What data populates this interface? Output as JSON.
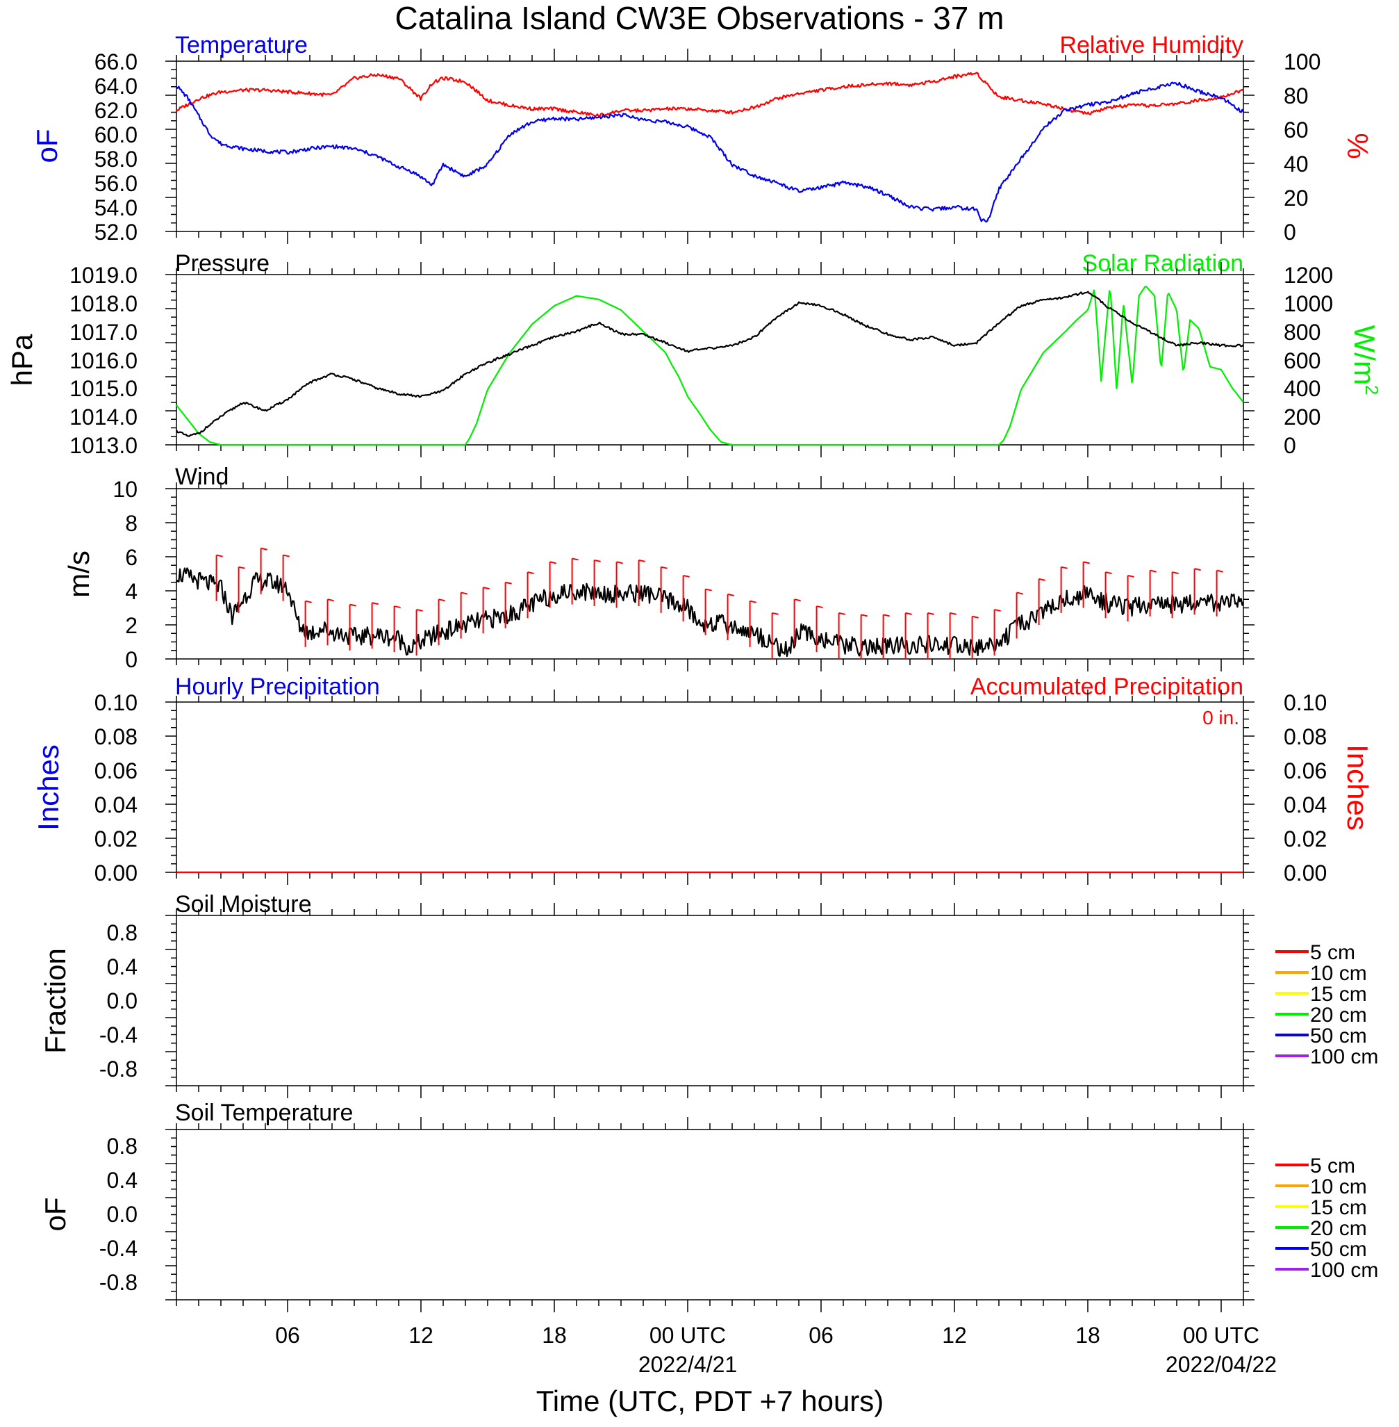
{
  "title": "Catalina Island CW3E Observations - 37 m",
  "x_axis": {
    "title": "Time (UTC, PDT +7 hours)",
    "range_hours": [
      0,
      48
    ],
    "tick_labels": [
      {
        "hour": 5,
        "label": "06"
      },
      {
        "hour": 11,
        "label": "12"
      },
      {
        "hour": 17,
        "label": "18"
      },
      {
        "hour": 23,
        "label": "00 UTC"
      },
      {
        "hour": 29,
        "label": "06"
      },
      {
        "hour": 35,
        "label": "12"
      },
      {
        "hour": 41,
        "label": "18"
      },
      {
        "hour": 47,
        "label": "00 UTC"
      }
    ],
    "date_labels": [
      {
        "hour": 23,
        "label": "2022/4/21"
      },
      {
        "hour": 47,
        "label": "2022/04/22"
      }
    ]
  },
  "colors": {
    "temperature": "#0000ee",
    "humidity": "#ff0000",
    "pressure": "#000000",
    "solar": "#00ee00",
    "wind": "#000000",
    "barbs": "#ff0000",
    "hourly_precip": "#0000ee",
    "accum_precip": "#ff0000"
  },
  "panels": {
    "temperature": {
      "left_title": "Temperature",
      "right_title": "Relative Humidity",
      "left_unit": "oF",
      "right_unit": "%",
      "left_ticks": [
        "52.0",
        "54.0",
        "56.0",
        "58.0",
        "60.0",
        "62.0",
        "64.0",
        "66.0"
      ],
      "right_ticks": [
        "0",
        "20",
        "40",
        "60",
        "80",
        "100"
      ]
    },
    "pressure": {
      "left_title": "Pressure",
      "right_title": "Solar Radiation",
      "left_unit": "hPa",
      "right_unit": "W/m",
      "right_unit_sup": "2",
      "left_ticks": [
        "1013.0",
        "1014.0",
        "1015.0",
        "1016.0",
        "1017.0",
        "1018.0",
        "1019.0"
      ],
      "right_ticks": [
        "0",
        "200",
        "400",
        "600",
        "800",
        "1000",
        "1200"
      ]
    },
    "wind": {
      "left_title": "Wind",
      "left_unit": "m/s",
      "left_ticks": [
        "0",
        "2",
        "4",
        "6",
        "8",
        "10"
      ]
    },
    "precip": {
      "left_title": "Hourly Precipitation",
      "right_title": "Accumulated Precipitation",
      "accum_value": "0 in.",
      "left_unit": "Inches",
      "right_unit": "Inches",
      "left_ticks": [
        "0.00",
        "0.02",
        "0.04",
        "0.06",
        "0.08",
        "0.10"
      ],
      "right_ticks": [
        "0.00",
        "0.02",
        "0.04",
        "0.06",
        "0.08",
        "0.10"
      ]
    },
    "soil_moisture": {
      "left_title": "Soil Moisture",
      "left_unit": "Fraction",
      "left_ticks": [
        "-0.8",
        "-0.4",
        "0.0",
        "0.4",
        "0.8"
      ],
      "legend": [
        {
          "label": "5 cm",
          "color": "#ff0000"
        },
        {
          "label": "10 cm",
          "color": "#ffa500"
        },
        {
          "label": "15 cm",
          "color": "#ffff00"
        },
        {
          "label": "20 cm",
          "color": "#00ee00"
        },
        {
          "label": "50 cm",
          "color": "#0000ee"
        },
        {
          "label": "100 cm",
          "color": "#a020f0"
        }
      ]
    },
    "soil_temperature": {
      "left_title": "Soil Temperature",
      "left_unit": "oF",
      "left_ticks": [
        "-0.8",
        "-0.4",
        "0.0",
        "0.4",
        "0.8"
      ],
      "legend": [
        {
          "label": "5 cm",
          "color": "#ff0000"
        },
        {
          "label": "10 cm",
          "color": "#ffa500"
        },
        {
          "label": "15 cm",
          "color": "#ffff00"
        },
        {
          "label": "20 cm",
          "color": "#00ee00"
        },
        {
          "label": "50 cm",
          "color": "#0000ee"
        },
        {
          "label": "100 cm",
          "color": "#a020f0"
        }
      ]
    }
  },
  "chart_data": [
    {
      "type": "line",
      "title": "Temperature / Relative Humidity",
      "x_unit": "hours since 2022-04-20 01 UTC",
      "series": [
        {
          "name": "Temperature",
          "axis": "left",
          "unit": "oF",
          "x": [
            0,
            0.5,
            1,
            1.5,
            2,
            3,
            4,
            5,
            6,
            7,
            8,
            9,
            10,
            10.5,
            11,
            11.5,
            12,
            12.5,
            13,
            14,
            15,
            16,
            17,
            18,
            19,
            20,
            21,
            22,
            23,
            24,
            25,
            26,
            27,
            28,
            29,
            30,
            31,
            32,
            33,
            34,
            35,
            36,
            36.2,
            36.5,
            37,
            38,
            39,
            40,
            41,
            42,
            43,
            44,
            45,
            46,
            47,
            48
          ],
          "y": [
            64.0,
            63.0,
            61.5,
            60.0,
            59.2,
            58.8,
            58.6,
            58.5,
            58.8,
            59.0,
            58.8,
            58.2,
            57.3,
            57.0,
            56.5,
            55.8,
            57.5,
            57.0,
            56.5,
            57.5,
            60.0,
            61.0,
            61.3,
            61.2,
            61.4,
            61.6,
            61.2,
            61.0,
            60.6,
            59.8,
            57.5,
            56.6,
            56.0,
            55.3,
            55.6,
            56.0,
            55.7,
            55.0,
            54.0,
            53.8,
            54.0,
            53.8,
            53.0,
            52.8,
            55.5,
            58.0,
            60.5,
            62.0,
            62.4,
            62.7,
            63.3,
            63.8,
            64.2,
            63.5,
            63.0,
            61.8
          ]
        },
        {
          "name": "Relative Humidity",
          "axis": "right",
          "unit": "%",
          "x": [
            0,
            1,
            2,
            3,
            4,
            5,
            6,
            7,
            8,
            9,
            10,
            11,
            11.5,
            12,
            13,
            14,
            15,
            16,
            17,
            18,
            19,
            20,
            21,
            22,
            23,
            24,
            25,
            26,
            27,
            28,
            29,
            30,
            31,
            32,
            33,
            34,
            35,
            36,
            36.5,
            37,
            38,
            39,
            40,
            41,
            42,
            43,
            44,
            45,
            46,
            47,
            48
          ],
          "y": [
            71,
            78,
            82,
            83,
            83,
            82,
            81,
            80,
            90,
            92,
            90,
            78,
            87,
            90,
            88,
            77,
            74,
            72,
            72,
            70,
            68,
            71,
            71,
            72,
            72,
            71,
            70,
            73,
            78,
            81,
            83,
            85,
            86,
            87,
            86,
            88,
            91,
            93,
            86,
            79,
            77,
            75,
            72,
            69,
            73,
            74,
            74,
            75,
            77,
            79,
            83
          ]
        }
      ],
      "ylim_left": [
        52,
        66
      ],
      "ylim_right": [
        0,
        100
      ]
    },
    {
      "type": "line",
      "title": "Pressure / Solar Radiation",
      "x_unit": "hours since 2022-04-20 01 UTC",
      "series": [
        {
          "name": "Pressure",
          "axis": "left",
          "unit": "hPa",
          "x": [
            0,
            0.5,
            1,
            2,
            3,
            4,
            5,
            6,
            7,
            8,
            9,
            10,
            11,
            12,
            13,
            14,
            15,
            16,
            17,
            18,
            19,
            20,
            21,
            22,
            23,
            24,
            25,
            26,
            27,
            28,
            29,
            30,
            31,
            32,
            33,
            34,
            35,
            36,
            37,
            38,
            39,
            40,
            41,
            42,
            43,
            44,
            45,
            46,
            47,
            48
          ],
          "y": [
            1013.5,
            1013.3,
            1013.4,
            1014.0,
            1014.5,
            1014.2,
            1014.6,
            1015.2,
            1015.5,
            1015.3,
            1015.0,
            1014.8,
            1014.7,
            1014.9,
            1015.5,
            1015.9,
            1016.2,
            1016.5,
            1016.8,
            1017.0,
            1017.3,
            1016.9,
            1016.9,
            1016.6,
            1016.3,
            1016.4,
            1016.5,
            1016.8,
            1017.5,
            1018.0,
            1017.9,
            1017.6,
            1017.2,
            1016.9,
            1016.7,
            1016.8,
            1016.5,
            1016.6,
            1017.3,
            1017.9,
            1018.1,
            1018.2,
            1018.4,
            1017.8,
            1017.3,
            1016.9,
            1016.5,
            1016.6,
            1016.5,
            1016.5
          ]
        },
        {
          "name": "Solar Radiation",
          "axis": "right",
          "unit": "W/m2",
          "x": [
            0,
            0.5,
            1,
            1.5,
            2,
            4,
            6,
            8,
            10,
            11,
            12,
            13,
            13.2,
            13.5,
            14,
            15,
            16,
            17,
            18,
            19,
            20,
            21,
            22,
            22.3,
            22.6,
            23,
            23.5,
            24,
            24.5,
            25,
            26,
            28,
            30,
            32,
            34,
            35,
            36,
            37,
            37.2,
            37.5,
            38,
            39,
            40,
            40.5,
            41,
            41.3,
            41.6,
            42,
            42.3,
            42.6,
            43,
            43.3,
            43.6,
            44,
            44.3,
            44.6,
            45,
            45.3,
            45.6,
            46,
            46.5,
            47,
            47.5,
            48
          ],
          "y": [
            280,
            180,
            80,
            20,
            0,
            0,
            0,
            0,
            0,
            0,
            0,
            0,
            50,
            150,
            390,
            650,
            850,
            980,
            1050,
            1025,
            950,
            800,
            650,
            560,
            480,
            340,
            230,
            110,
            20,
            0,
            0,
            0,
            0,
            0,
            0,
            0,
            0,
            0,
            30,
            130,
            390,
            650,
            800,
            880,
            950,
            1100,
            450,
            1130,
            380,
            1000,
            420,
            1050,
            1120,
            1050,
            520,
            1080,
            950,
            500,
            880,
            820,
            550,
            530,
            400,
            300
          ]
        }
      ],
      "ylim_left": [
        1013,
        1019
      ],
      "ylim_right": [
        0,
        1200
      ]
    },
    {
      "type": "line",
      "title": "Wind",
      "x_unit": "hours since 2022-04-20 01 UTC",
      "series": [
        {
          "name": "Wind speed",
          "unit": "m/s",
          "x": [
            0,
            1,
            2,
            2.5,
            3,
            3.5,
            4,
            5,
            5.5,
            6,
            6.5,
            7,
            8,
            9,
            10,
            10.5,
            11,
            12,
            13,
            14,
            15,
            16,
            17,
            18,
            19,
            20,
            21,
            22,
            23,
            23.5,
            24,
            25,
            26,
            27,
            27.5,
            28,
            29,
            30,
            31,
            32,
            33,
            34,
            35,
            36,
            37,
            38,
            39,
            40,
            41,
            42,
            43,
            44,
            45,
            46,
            47,
            48
          ],
          "y": [
            5.0,
            4.6,
            4.2,
            2.5,
            3.5,
            4.5,
            4.6,
            4.2,
            2.0,
            1.5,
            1.8,
            1.6,
            1.3,
            1.4,
            1.2,
            0.6,
            1.0,
            1.6,
            2.0,
            2.3,
            2.6,
            3.2,
            3.8,
            4.0,
            3.9,
            3.8,
            3.9,
            3.5,
            3.0,
            2.0,
            2.2,
            1.9,
            1.5,
            0.8,
            0.4,
            1.6,
            1.2,
            0.8,
            0.7,
            0.7,
            0.8,
            0.8,
            0.8,
            0.6,
            1.0,
            2.0,
            2.8,
            3.5,
            3.8,
            3.2,
            3.0,
            3.3,
            3.2,
            3.4,
            3.3,
            3.2
          ]
        }
      ],
      "ylim": [
        0,
        10
      ]
    },
    {
      "type": "line",
      "title": "Hourly / Accumulated Precipitation",
      "x_unit": "hours since 2022-04-20 01 UTC",
      "series": [
        {
          "name": "Hourly Precipitation",
          "x": [
            0,
            48
          ],
          "y": [
            0,
            0
          ]
        },
        {
          "name": "Accumulated Precipitation",
          "x": [
            0,
            48
          ],
          "y": [
            0,
            0
          ]
        }
      ],
      "ylim": [
        0,
        0.1
      ]
    },
    {
      "type": "line",
      "title": "Soil Moisture",
      "series": [],
      "ylim": [
        -1,
        1
      ]
    },
    {
      "type": "line",
      "title": "Soil Temperature",
      "series": [],
      "ylim": [
        -1,
        1
      ]
    }
  ]
}
